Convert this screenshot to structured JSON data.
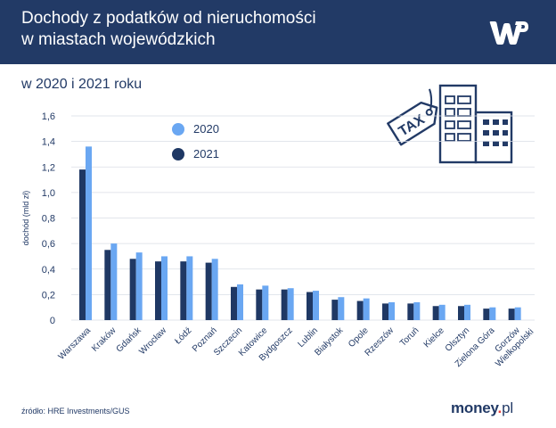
{
  "header": {
    "title_line1": "Dochody z podatków od nieruchomości",
    "title_line2": "w miastach wojewódzkich",
    "logo_icon": "wp-logo"
  },
  "subtitle": "w 2020 i 2021 roku",
  "illustration": {
    "tag_text": "TAX",
    "icon": "tax-tag-and-office-buildings"
  },
  "colors": {
    "header_bg": "#223a66",
    "series_2020": "#6aa7f2",
    "series_2021": "#1f3864",
    "axis_text": "#223a66",
    "grid": "#d9dde5"
  },
  "footer": {
    "source": "źródło: HRE Investments/GUS",
    "brand_main": "money",
    "brand_dot": ".",
    "brand_suffix": "pl"
  },
  "chart_data": {
    "type": "bar",
    "ylabel": "dochód (mld zł)",
    "xlabel": "",
    "ylim": [
      0,
      1.6
    ],
    "yticks": [
      "0",
      "0,2",
      "0,4",
      "0,6",
      "0,8",
      "1,0",
      "1,2",
      "1,4",
      "1,6"
    ],
    "grid": true,
    "legend_placement": "top-left",
    "categories": [
      "Warszawa",
      "Kraków",
      "Gdańsk",
      "Wrocław",
      "Łódź",
      "Poznań",
      "Szczecin",
      "Katowice",
      "Bydgoszcz",
      "Lublin",
      "Białystok",
      "Opole",
      "Rzeszów",
      "Toruń",
      "Kielce",
      "Olsztyn",
      "Zielona Góra",
      "Gorzów Wielkopolski"
    ],
    "series": [
      {
        "name": "2020",
        "values": [
          1.36,
          0.6,
          0.53,
          0.5,
          0.5,
          0.48,
          0.28,
          0.27,
          0.25,
          0.23,
          0.18,
          0.17,
          0.14,
          0.14,
          0.12,
          0.12,
          0.1,
          0.1
        ]
      },
      {
        "name": "2021",
        "values": [
          1.18,
          0.55,
          0.48,
          0.46,
          0.46,
          0.45,
          0.26,
          0.24,
          0.24,
          0.22,
          0.16,
          0.15,
          0.13,
          0.13,
          0.11,
          0.11,
          0.09,
          0.09
        ]
      }
    ]
  }
}
